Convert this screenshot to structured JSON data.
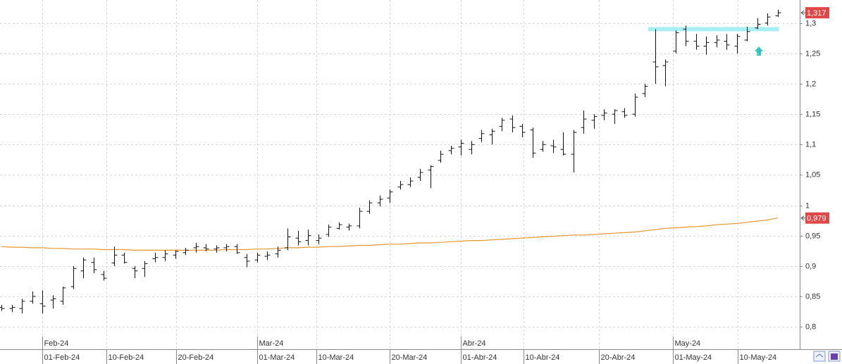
{
  "chart_data": {
    "type": "ohlc",
    "xlim": [
      -0.14,
      78.14
    ],
    "ylim": [
      0.763,
      1.338
    ],
    "grid": true,
    "color": "#111111",
    "xticks": [
      {
        "value": 4,
        "label": "01-Feb-24"
      },
      {
        "value": 10.3,
        "label": "10-Feb-24"
      },
      {
        "value": 17.1,
        "label": "20-Feb-24"
      },
      {
        "value": 25,
        "label": "01-Mar-24"
      },
      {
        "value": 30.8,
        "label": "10-Mar-24"
      },
      {
        "value": 38,
        "label": "20-Mar-24"
      },
      {
        "value": 45,
        "label": "01-Abr-24"
      },
      {
        "value": 51.1,
        "label": "10-Abr-24"
      },
      {
        "value": 58.5,
        "label": "20-Abr-24"
      },
      {
        "value": 65.7,
        "label": "01-May-24"
      },
      {
        "value": 72.1,
        "label": "10-May-24"
      }
    ],
    "month_ticks": [
      {
        "value": 4,
        "label": "Feb-24"
      },
      {
        "value": 25,
        "label": "Mar-24"
      },
      {
        "value": 45,
        "label": "Abr-24"
      },
      {
        "value": 65.7,
        "label": "May-24"
      }
    ],
    "yticks": [
      {
        "value": 0.8,
        "label": "0,8"
      },
      {
        "value": 0.85,
        "label": "0,85"
      },
      {
        "value": 0.9,
        "label": "0,9"
      },
      {
        "value": 0.95,
        "label": "0,95"
      },
      1,
      {
        "value": 1.05,
        "label": "1,05"
      },
      {
        "value": 1.1,
        "label": "1,1"
      },
      {
        "value": 1.15,
        "label": "1,15"
      },
      {
        "value": 1.2,
        "label": "1,2"
      },
      {
        "value": 1.25,
        "label": "1,25"
      },
      {
        "value": 1.3,
        "label": "1,3"
      }
    ],
    "open": [
      0.832,
      0.83,
      0.83,
      0.842,
      0.838,
      0.844,
      0.842,
      0.866,
      0.892,
      0.906,
      0.886,
      0.905,
      0.918,
      0.896,
      0.896,
      0.912,
      0.914,
      0.918,
      0.922,
      0.93,
      0.93,
      0.928,
      0.93,
      0.932,
      0.914,
      0.91,
      0.916,
      0.92,
      0.93,
      0.946,
      0.942,
      0.942,
      0.952,
      0.962,
      0.964,
      0.966,
      0.99,
      1.004,
      1.012,
      1.03,
      1.034,
      1.046,
      1.058,
      1.074,
      1.09,
      1.096,
      1.092,
      1.11,
      1.116,
      1.13,
      1.142,
      1.13,
      1.124,
      1.092,
      1.098,
      1.092,
      1.084,
      1.128,
      1.14,
      1.148,
      1.15,
      1.154,
      1.15,
      1.184,
      1.236,
      1.23,
      1.254,
      1.29,
      1.27,
      1.262,
      1.268,
      1.27,
      1.262,
      1.272,
      1.292,
      1.3,
      1.312
    ],
    "high": [
      0.836,
      0.836,
      0.846,
      0.858,
      0.86,
      0.852,
      0.866,
      0.9,
      0.914,
      0.914,
      0.892,
      0.932,
      0.922,
      0.9,
      0.908,
      0.922,
      0.926,
      0.926,
      0.93,
      0.938,
      0.936,
      0.934,
      0.936,
      0.936,
      0.92,
      0.922,
      0.924,
      0.932,
      0.962,
      0.958,
      0.96,
      0.952,
      0.968,
      0.972,
      0.97,
      0.996,
      1.008,
      1.016,
      1.026,
      1.04,
      1.046,
      1.06,
      1.066,
      1.09,
      1.098,
      1.108,
      1.106,
      1.124,
      1.126,
      1.144,
      1.148,
      1.134,
      1.128,
      1.106,
      1.108,
      1.12,
      1.124,
      1.156,
      1.15,
      1.158,
      1.158,
      1.16,
      1.184,
      1.2,
      1.29,
      1.24,
      1.288,
      1.296,
      1.282,
      1.278,
      1.28,
      1.282,
      1.282,
      1.294,
      1.308,
      1.316,
      1.322
    ],
    "low": [
      0.826,
      0.824,
      0.822,
      0.838,
      0.822,
      0.83,
      0.836,
      0.862,
      0.88,
      0.888,
      0.876,
      0.9,
      0.904,
      0.88,
      0.882,
      0.906,
      0.908,
      0.912,
      0.918,
      0.922,
      0.924,
      0.922,
      0.924,
      0.92,
      0.898,
      0.906,
      0.91,
      0.914,
      0.926,
      0.934,
      0.934,
      0.936,
      0.948,
      0.96,
      0.958,
      0.962,
      0.986,
      0.998,
      1.004,
      1.026,
      1.03,
      1.04,
      1.028,
      1.07,
      1.084,
      1.082,
      1.084,
      1.104,
      1.1,
      1.122,
      1.12,
      1.112,
      1.078,
      1.088,
      1.086,
      1.082,
      1.054,
      1.118,
      1.126,
      1.14,
      1.134,
      1.144,
      1.146,
      1.178,
      1.2,
      1.196,
      1.25,
      1.262,
      1.256,
      1.248,
      1.26,
      1.256,
      1.25,
      1.27,
      1.29,
      1.296,
      1.31
    ],
    "close": [
      0.83,
      0.832,
      0.842,
      0.85,
      0.834,
      0.846,
      0.864,
      0.896,
      0.91,
      0.894,
      0.88,
      0.918,
      0.906,
      0.892,
      0.904,
      0.914,
      0.92,
      0.924,
      0.926,
      0.932,
      0.928,
      0.93,
      0.932,
      0.922,
      0.908,
      0.918,
      0.918,
      0.926,
      0.948,
      0.94,
      0.95,
      0.946,
      0.964,
      0.968,
      0.966,
      0.99,
      1.004,
      1.01,
      1.022,
      1.034,
      1.04,
      1.054,
      1.064,
      1.084,
      1.094,
      1.102,
      1.1,
      1.118,
      1.122,
      1.14,
      1.128,
      1.12,
      1.086,
      1.1,
      1.096,
      1.084,
      1.12,
      1.142,
      1.146,
      1.152,
      1.156,
      1.148,
      1.178,
      1.196,
      1.228,
      1.236,
      1.284,
      1.27,
      1.262,
      1.268,
      1.272,
      1.264,
      1.278,
      1.286,
      1.298,
      1.31,
      1.317
    ],
    "moving_average": {
      "color": "#e8952f",
      "values": [
        0.932,
        0.931,
        0.931,
        0.93,
        0.93,
        0.929,
        0.929,
        0.928,
        0.928,
        0.928,
        0.927,
        0.927,
        0.927,
        0.926,
        0.926,
        0.926,
        0.926,
        0.926,
        0.926,
        0.926,
        0.926,
        0.926,
        0.927,
        0.927,
        0.927,
        0.928,
        0.928,
        0.929,
        0.93,
        0.93,
        0.931,
        0.931,
        0.932,
        0.932,
        0.933,
        0.934,
        0.934,
        0.935,
        0.936,
        0.936,
        0.937,
        0.938,
        0.938,
        0.939,
        0.94,
        0.941,
        0.942,
        0.942,
        0.943,
        0.944,
        0.945,
        0.946,
        0.947,
        0.948,
        0.949,
        0.95,
        0.951,
        0.951,
        0.952,
        0.953,
        0.954,
        0.955,
        0.956,
        0.958,
        0.96,
        0.962,
        0.963,
        0.964,
        0.965,
        0.966,
        0.968,
        0.969,
        0.97,
        0.972,
        0.974,
        0.976,
        0.979
      ]
    },
    "ma_label": {
      "value": 0.979,
      "label": "0,979",
      "color": "#e04848"
    },
    "last_price": {
      "value": 1.317,
      "label": "1,317",
      "color": "#e04848"
    },
    "resistance": {
      "level": 1.29,
      "start": 63.3,
      "end": 76.1,
      "color": "#a8eef2"
    }
  }
}
